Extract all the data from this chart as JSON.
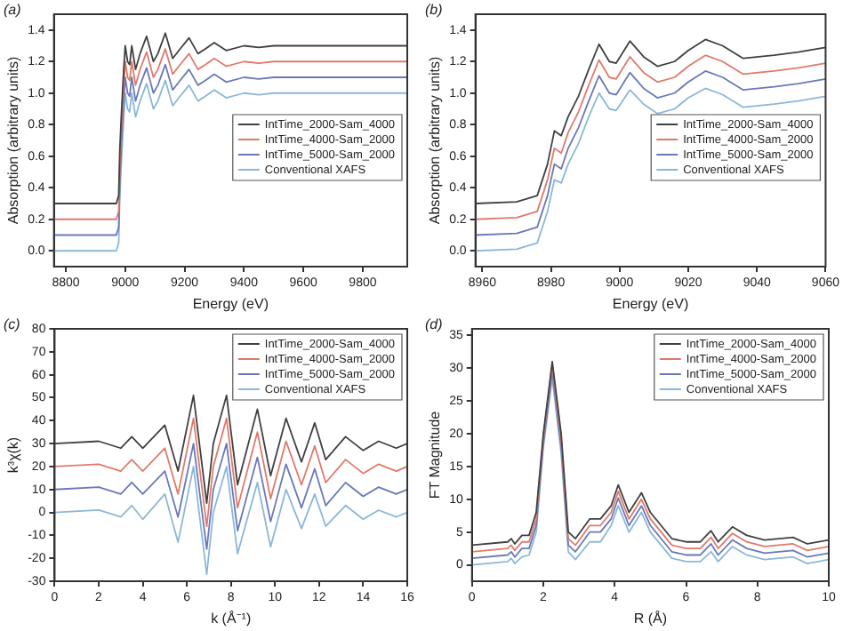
{
  "chart_data": [
    {
      "type": "line",
      "annotations": [
        "(a)"
      ],
      "xlabel": "Energy (eV)",
      "ylabel": "Absorption (arbitrary units)",
      "legend": "right",
      "grid": false,
      "xlim": [
        8760,
        9950
      ],
      "xticks": [
        8800,
        9000,
        9200,
        9400,
        9600,
        9800
      ],
      "ylim": [
        -0.1,
        1.5
      ],
      "yticks": [
        {
          "value": 0,
          "label": "0.0"
        },
        {
          "value": 0.2,
          "label": "0.2"
        },
        {
          "value": 0.4,
          "label": "0.4"
        },
        {
          "value": 0.6,
          "label": "0.6"
        },
        {
          "value": 0.8,
          "label": "0.8"
        },
        {
          "value": 1,
          "label": "1.0"
        },
        {
          "value": 1.2,
          "label": "1.2"
        },
        {
          "value": 1.4,
          "label": "1.4"
        }
      ],
      "x": [
        8760,
        8970,
        8978,
        8982,
        8988,
        8995,
        9000,
        9008,
        9015,
        9022,
        9035,
        9050,
        9072,
        9095,
        9110,
        9135,
        9160,
        9185,
        9215,
        9245,
        9270,
        9300,
        9340,
        9400,
        9450,
        9500,
        9600,
        9700,
        9800,
        9950
      ],
      "series": [
        {
          "name": "IntTime_2000-Sam_4000",
          "color": "#404040",
          "values": [
            0.3,
            0.3,
            0.35,
            0.65,
            0.9,
            1.15,
            1.3,
            1.2,
            1.18,
            1.3,
            1.15,
            1.25,
            1.36,
            1.2,
            1.25,
            1.38,
            1.22,
            1.28,
            1.35,
            1.25,
            1.28,
            1.32,
            1.27,
            1.3,
            1.29,
            1.3,
            1.3,
            1.3,
            1.3,
            1.3
          ]
        },
        {
          "name": "IntTime_4000-Sam_2000",
          "color": "#e07a6a",
          "values": [
            0.2,
            0.2,
            0.25,
            0.55,
            0.8,
            1.05,
            1.2,
            1.1,
            1.08,
            1.2,
            1.05,
            1.15,
            1.26,
            1.1,
            1.15,
            1.28,
            1.12,
            1.18,
            1.25,
            1.15,
            1.18,
            1.22,
            1.17,
            1.2,
            1.19,
            1.2,
            1.2,
            1.2,
            1.2,
            1.2
          ]
        },
        {
          "name": "IntTime_5000-Sam_2000",
          "color": "#6a78b8",
          "values": [
            0.1,
            0.1,
            0.15,
            0.45,
            0.7,
            0.95,
            1.1,
            1.0,
            0.98,
            1.1,
            0.95,
            1.05,
            1.16,
            1.0,
            1.05,
            1.18,
            1.02,
            1.08,
            1.15,
            1.05,
            1.08,
            1.12,
            1.07,
            1.1,
            1.09,
            1.1,
            1.1,
            1.1,
            1.1,
            1.1
          ]
        },
        {
          "name": "Conventional XAFS",
          "color": "#8ab8d8",
          "values": [
            0,
            0,
            0.05,
            0.35,
            0.6,
            0.85,
            1.0,
            0.9,
            0.88,
            1.0,
            0.85,
            0.95,
            1.06,
            0.9,
            0.95,
            1.08,
            0.92,
            0.98,
            1.05,
            0.95,
            0.98,
            1.02,
            0.97,
            1.0,
            0.99,
            1.0,
            1.0,
            1.0,
            1.0,
            1.0
          ]
        }
      ]
    },
    {
      "type": "line",
      "annotations": [
        "(b)"
      ],
      "xlabel": "Energy (eV)",
      "ylabel": "Absorption (arbitrary units)",
      "legend": "right",
      "grid": false,
      "xlim": [
        8958,
        9060
      ],
      "xticks": [
        8960,
        8980,
        9000,
        9020,
        9040,
        9060
      ],
      "ylim": [
        -0.1,
        1.5
      ],
      "yticks": [
        {
          "value": 0,
          "label": "0.0"
        },
        {
          "value": 0.2,
          "label": "0.2"
        },
        {
          "value": 0.4,
          "label": "0.4"
        },
        {
          "value": 0.6,
          "label": "0.6"
        },
        {
          "value": 0.8,
          "label": "0.8"
        },
        {
          "value": 1,
          "label": "1.0"
        },
        {
          "value": 1.2,
          "label": "1.2"
        },
        {
          "value": 1.4,
          "label": "1.4"
        }
      ],
      "x": [
        8958,
        8970,
        8976,
        8979,
        8981,
        8983,
        8985,
        8988,
        8991,
        8994,
        8997,
        8999,
        9003,
        9007,
        9011,
        9016,
        9020,
        9025,
        9030,
        9036,
        9045,
        9052,
        9060
      ],
      "series": [
        {
          "name": "IntTime_2000-Sam_4000",
          "color": "#404040",
          "values": [
            0.3,
            0.31,
            0.35,
            0.55,
            0.76,
            0.73,
            0.85,
            0.98,
            1.15,
            1.31,
            1.2,
            1.19,
            1.33,
            1.23,
            1.17,
            1.2,
            1.27,
            1.34,
            1.3,
            1.22,
            1.24,
            1.26,
            1.29
          ]
        },
        {
          "name": "IntTime_4000-Sam_2000",
          "color": "#e07a6a",
          "values": [
            0.2,
            0.21,
            0.25,
            0.45,
            0.65,
            0.62,
            0.75,
            0.88,
            1.05,
            1.21,
            1.1,
            1.09,
            1.23,
            1.13,
            1.07,
            1.1,
            1.17,
            1.24,
            1.2,
            1.12,
            1.14,
            1.16,
            1.19
          ]
        },
        {
          "name": "IntTime_5000-Sam_2000",
          "color": "#6a78b8",
          "values": [
            0.1,
            0.11,
            0.15,
            0.35,
            0.55,
            0.52,
            0.65,
            0.78,
            0.95,
            1.11,
            1.0,
            0.99,
            1.13,
            1.03,
            0.97,
            1.0,
            1.07,
            1.14,
            1.1,
            1.02,
            1.04,
            1.06,
            1.09
          ]
        },
        {
          "name": "Conventional XAFS",
          "color": "#8ab8d8",
          "values": [
            0,
            0.01,
            0.05,
            0.25,
            0.45,
            0.43,
            0.55,
            0.68,
            0.85,
            1.0,
            0.9,
            0.89,
            1.02,
            0.93,
            0.87,
            0.9,
            0.97,
            1.03,
            0.99,
            0.91,
            0.93,
            0.95,
            0.98
          ]
        }
      ]
    },
    {
      "type": "line",
      "annotations": [
        "(c)"
      ],
      "xlabel": "k (Å⁻¹)",
      "ylabel": "k³χ(k)",
      "legend": "top right",
      "grid": false,
      "xlim": [
        0,
        16
      ],
      "xticks": [
        0,
        2,
        4,
        6,
        8,
        10,
        12,
        14,
        16
      ],
      "ylim": [
        -30,
        80
      ],
      "yticks": [
        -30,
        -20,
        -10,
        0,
        10,
        20,
        30,
        40,
        50,
        60,
        70,
        80
      ],
      "x": [
        0,
        2,
        3,
        3.5,
        4,
        5,
        5.6,
        6.3,
        6.9,
        7.2,
        7.8,
        8.3,
        9.2,
        9.8,
        10.5,
        11.2,
        11.8,
        12.3,
        13.2,
        14,
        14.7,
        15.5,
        16
      ],
      "series": [
        {
          "name": "IntTime_2000-Sam_4000",
          "color": "#404040",
          "values": [
            30,
            31,
            28,
            33,
            28,
            38,
            18,
            51,
            4,
            30,
            51,
            12,
            45,
            16,
            41,
            22,
            39,
            23,
            33,
            27,
            31,
            28,
            30
          ]
        },
        {
          "name": "IntTime_4000-Sam_2000",
          "color": "#e07a6a",
          "values": [
            20,
            21,
            18,
            23,
            18,
            28,
            8,
            41,
            -6,
            20,
            41,
            2,
            35,
            6,
            31,
            12,
            29,
            13,
            23,
            17,
            21,
            18,
            20
          ]
        },
        {
          "name": "IntTime_5000-Sam_2000",
          "color": "#6a78b8",
          "values": [
            10,
            11,
            8,
            13,
            8,
            18,
            -2,
            30,
            -16,
            10,
            30,
            -8,
            24,
            -4,
            21,
            2,
            19,
            3,
            13,
            7,
            11,
            8,
            10
          ]
        },
        {
          "name": "Conventional XAFS",
          "color": "#8ab8d8",
          "values": [
            0,
            1,
            -2,
            3,
            -3,
            8,
            -13,
            20,
            -27,
            0,
            20,
            -18,
            13,
            -15,
            10,
            -7,
            8,
            -6,
            3,
            -3,
            1,
            -2,
            0
          ]
        }
      ]
    },
    {
      "type": "line",
      "annotations": [
        "(d)"
      ],
      "xlabel": "R (Å)",
      "ylabel": "FT Magnitude",
      "legend": "top right",
      "grid": false,
      "xlim": [
        0,
        10
      ],
      "xticks": [
        0,
        2,
        4,
        6,
        8,
        10
      ],
      "ylim": [
        -2.5,
        36
      ],
      "yticks": [
        0,
        5,
        10,
        15,
        20,
        25,
        30,
        35
      ],
      "x": [
        0,
        1,
        1.1,
        1.2,
        1.4,
        1.6,
        1.8,
        2,
        2.25,
        2.5,
        2.7,
        2.9,
        3.3,
        3.6,
        3.9,
        4.1,
        4.4,
        4.75,
        5,
        5.3,
        5.6,
        6,
        6.4,
        6.7,
        6.9,
        7.3,
        7.7,
        8.2,
        9,
        9.4,
        10
      ],
      "series": [
        {
          "name": "IntTime_2000-Sam_4000",
          "color": "#404040",
          "values": [
            3,
            3.5,
            4,
            3.2,
            4.5,
            4.5,
            8,
            20,
            31,
            20,
            5,
            4,
            7,
            7,
            9,
            12.2,
            8,
            11,
            8,
            6,
            4,
            3.5,
            3.5,
            5.2,
            3.5,
            5.8,
            4.5,
            3.8,
            4.2,
            3.2,
            3.8
          ]
        },
        {
          "name": "IntTime_4000-Sam_2000",
          "color": "#e07a6a",
          "values": [
            2,
            2.5,
            3,
            2.2,
            3.5,
            3.5,
            7,
            19.5,
            30.5,
            19,
            4,
            3,
            6,
            6,
            8,
            11.2,
            7,
            10,
            7,
            5,
            3,
            2.5,
            2.5,
            4.2,
            2.5,
            4.8,
            3.5,
            2.8,
            3.2,
            2.2,
            2.8
          ]
        },
        {
          "name": "IntTime_5000-Sam_2000",
          "color": "#6a78b8",
          "values": [
            1,
            1.5,
            2,
            1.2,
            2.5,
            2.5,
            6,
            18.5,
            29.5,
            18,
            3,
            2,
            5,
            5,
            7,
            10.2,
            6,
            9,
            6,
            4,
            2,
            1.5,
            1.5,
            3.2,
            1.5,
            3.8,
            2.5,
            1.8,
            2.2,
            1.2,
            1.8
          ]
        },
        {
          "name": "Conventional XAFS",
          "color": "#8ab8d8",
          "values": [
            0,
            0.5,
            1,
            0.2,
            1.2,
            1.5,
            5,
            18,
            28.5,
            17,
            2,
            0.8,
            3.5,
            3.5,
            6,
            9,
            5,
            8,
            5,
            3,
            1,
            0.5,
            0.5,
            2,
            0.5,
            2.8,
            1.5,
            0.8,
            1.2,
            0.2,
            0.8
          ]
        }
      ]
    }
  ]
}
